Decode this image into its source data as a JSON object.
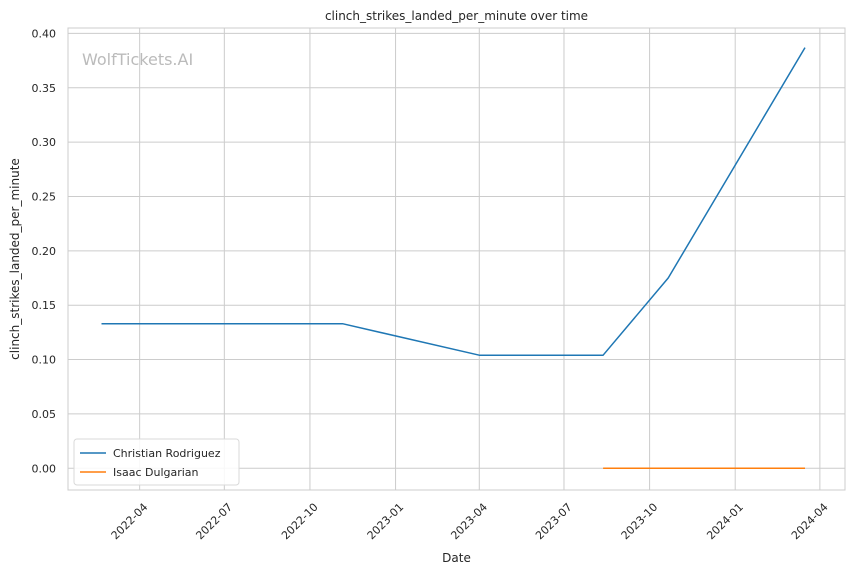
{
  "chart_data": {
    "type": "line",
    "title": "clinch_strikes_landed_per_minute over time",
    "xlabel": "Date",
    "ylabel": "clinch_strikes_landed_per_minute",
    "watermark": "WolfTickets.AI",
    "xlim": [
      "2022-01-14",
      "2024-04-28"
    ],
    "ylim": [
      -0.02,
      0.405
    ],
    "x_ticks": [
      "2022-04",
      "2022-07",
      "2022-10",
      "2023-01",
      "2023-04",
      "2023-07",
      "2023-10",
      "2024-01",
      "2024-04"
    ],
    "y_ticks": [
      "0.00",
      "0.05",
      "0.10",
      "0.15",
      "0.20",
      "0.25",
      "0.30",
      "0.35",
      "0.40"
    ],
    "grid": true,
    "legend_position": "lower-left",
    "series": [
      {
        "name": "Christian Rodriguez",
        "color": "#1f77b4",
        "points": [
          {
            "x": "2022-02-19",
            "y": 0.133
          },
          {
            "x": "2022-11-05",
            "y": 0.133
          },
          {
            "x": "2023-04-01",
            "y": 0.104
          },
          {
            "x": "2023-08-12",
            "y": 0.104
          },
          {
            "x": "2023-10-21",
            "y": 0.175
          },
          {
            "x": "2024-03-16",
            "y": 0.387
          }
        ]
      },
      {
        "name": "Isaac Dulgarian",
        "color": "#ff7f0e",
        "points": [
          {
            "x": "2023-08-12",
            "y": 0.0
          },
          {
            "x": "2024-03-16",
            "y": 0.0
          }
        ]
      }
    ]
  }
}
